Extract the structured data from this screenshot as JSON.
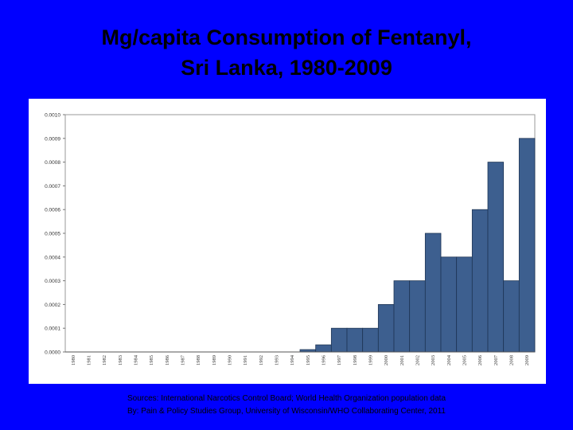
{
  "slide": {
    "title_line1": "Mg/capita Consumption of Fentanyl,",
    "title_line2": "Sri Lanka, 1980-2009",
    "source_line1": "Sources: International Narcotics Control Board; World Health Organization population data",
    "source_line2": "By: Pain & Policy Studies Group, University of Wisconsin/WHO Collaborating Center, 2011"
  },
  "colors": {
    "background": "#0000ff",
    "bar_fill": "#3d5f8f",
    "bar_stroke": "#1f3555",
    "panel": "#ffffff"
  },
  "chart_data": {
    "type": "bar",
    "title": "",
    "xlabel": "",
    "ylabel": "",
    "ylim": [
      0,
      0.001
    ],
    "yticks": [
      "0.0000",
      "0.0001",
      "0.0002",
      "0.0003",
      "0.0004",
      "0.0005",
      "0.0006",
      "0.0007",
      "0.0008",
      "0.0009",
      "0.0010"
    ],
    "ytick_values": [
      0,
      0.0001,
      0.0002,
      0.0003,
      0.0004,
      0.0005,
      0.0006,
      0.0007,
      0.0008,
      0.0009,
      0.001
    ],
    "grid": false,
    "legend": "none",
    "categories": [
      "1980",
      "1981",
      "1982",
      "1983",
      "1984",
      "1985",
      "1986",
      "1987",
      "1988",
      "1989",
      "1990",
      "1991",
      "1992",
      "1993",
      "1994",
      "1995",
      "1996",
      "1997",
      "1998",
      "1999",
      "2000",
      "2001",
      "2002",
      "2003",
      "2004",
      "2005",
      "2006",
      "2007",
      "2008",
      "2009"
    ],
    "values": [
      0,
      0,
      0,
      0,
      0,
      0,
      0,
      0,
      0,
      0,
      0,
      0,
      0,
      0,
      0,
      1e-05,
      3e-05,
      0.0001,
      0.0001,
      0.0001,
      0.0002,
      0.0003,
      0.0003,
      0.0005,
      0.0004,
      0.0004,
      0.0006,
      0.0008,
      0.0003,
      0.0009
    ]
  }
}
